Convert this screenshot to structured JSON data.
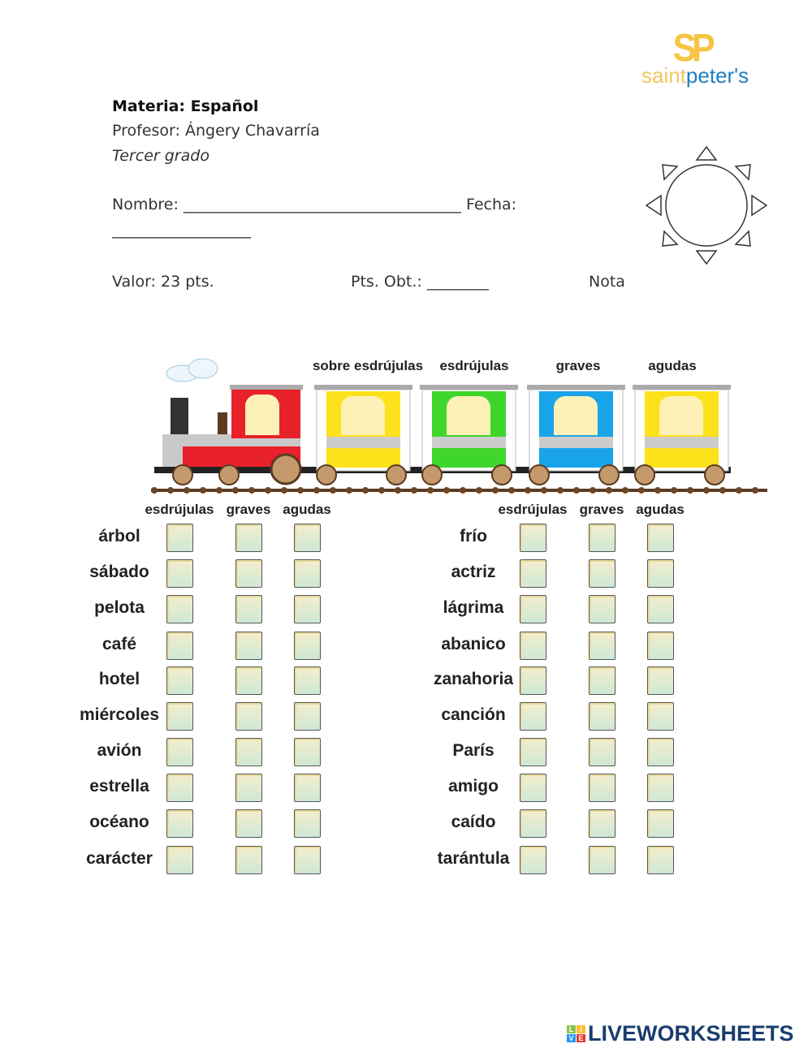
{
  "logo": {
    "initials": "SP",
    "name_part1": "saint",
    "name_part2": "peter's",
    "colors": {
      "yellow": "#f7c443",
      "blue": "#1f7fc4"
    }
  },
  "header": {
    "subject": "Materia: Español",
    "teacher": "Profesor: Ángery Chavarría",
    "grade": "Tercer grado",
    "name_label": "Nombre: ____________________________________ Fecha:",
    "date_line": "__________________",
    "value": "Valor: 23 pts.",
    "points_obtained": "Pts. Obt.: ________",
    "grade_label": "Nota"
  },
  "train": {
    "car_labels": [
      "sobre esdrújulas",
      "esdrújulas",
      "graves",
      "agudas"
    ],
    "car_colors": [
      "#e8212a",
      "#fde11a",
      "#3fd62b",
      "#19a4ea",
      "#fde11a"
    ]
  },
  "columns": [
    "esdrújulas",
    "graves",
    "agudas"
  ],
  "left_words": [
    "árbol",
    "sábado",
    "pelota",
    "café",
    "hotel",
    "miércoles",
    "avión",
    "estrella",
    "océano",
    "carácter"
  ],
  "right_words": [
    "frío",
    "actriz",
    "lágrima",
    "abanico",
    "zanahoria",
    "canción",
    "París",
    "amigo",
    "caído",
    "tarántula"
  ],
  "footer": {
    "brand": "LIVEWORKSHEETS",
    "badge_letters": [
      "L",
      "I",
      "V",
      "E"
    ]
  }
}
